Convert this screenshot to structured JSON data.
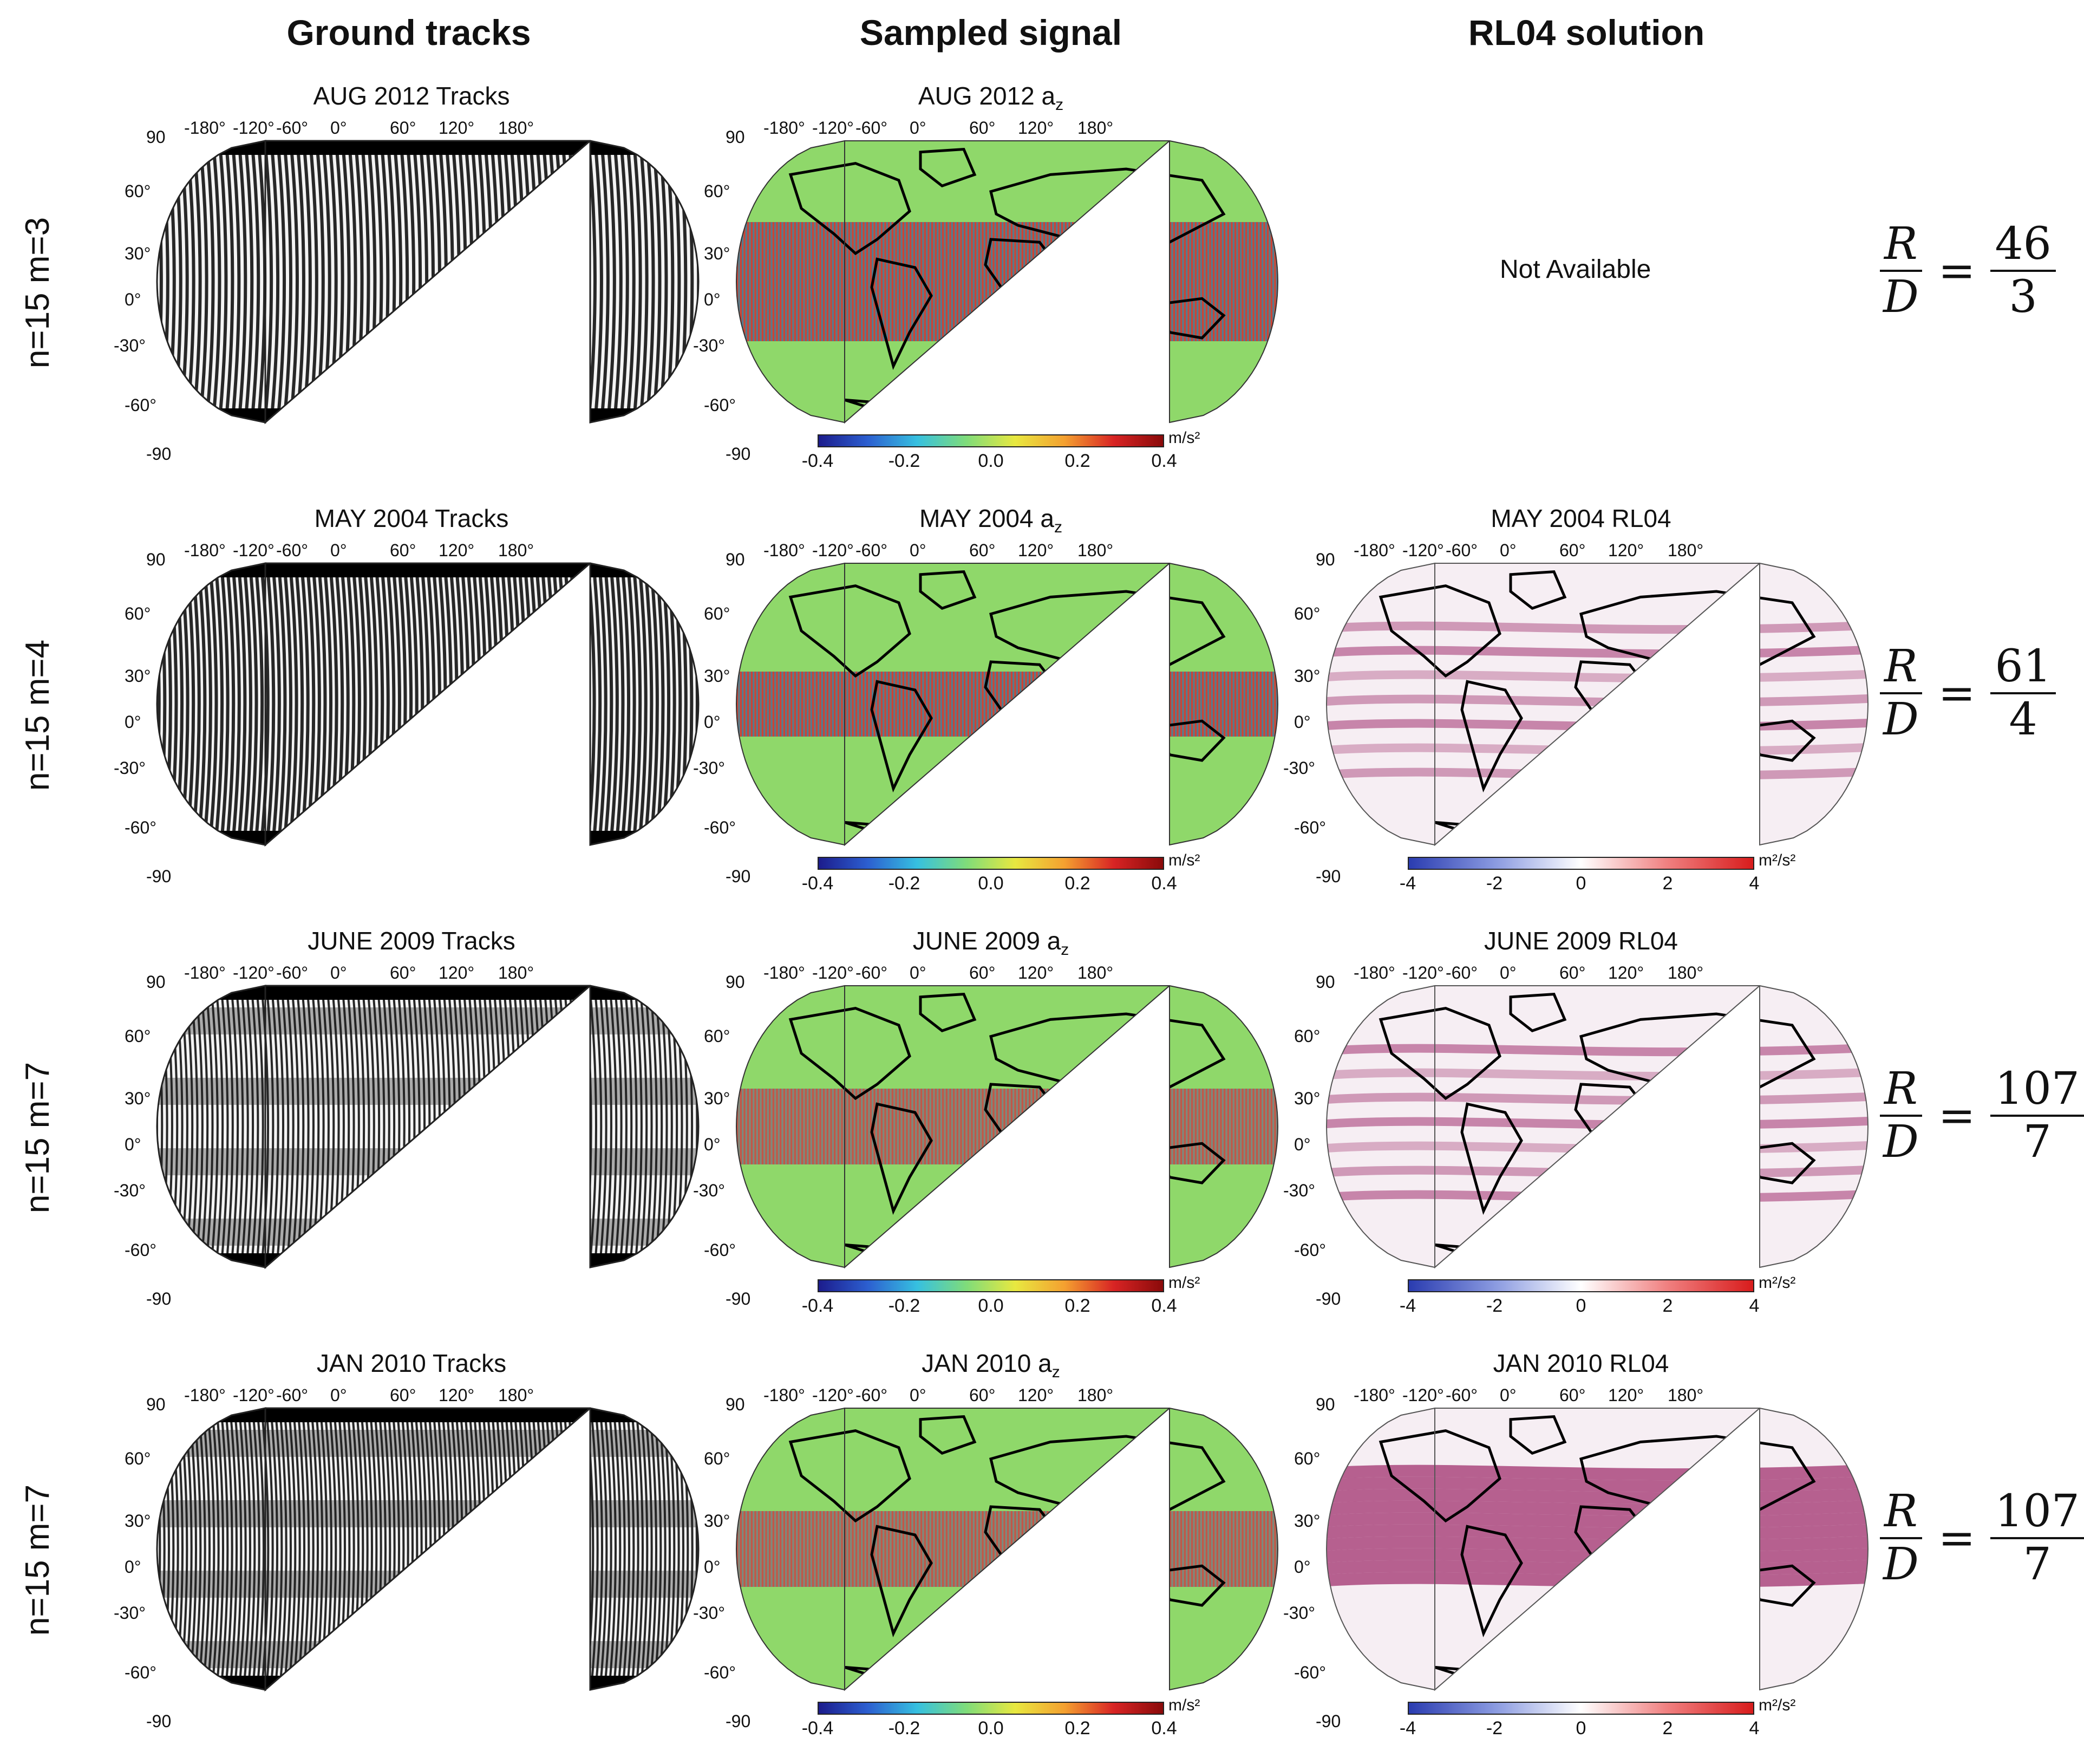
{
  "column_headers": [
    "Ground tracks",
    "Sampled signal",
    "RL04 solution"
  ],
  "lon_labels": [
    "-180°",
    "-120°",
    "-60°",
    "0°",
    "60°",
    "120°",
    "180°"
  ],
  "lat_labels": [
    "90",
    "60°",
    "30°",
    "0°",
    "-30°",
    "-60°",
    "-90"
  ],
  "rows": [
    {
      "label": "n=15  m=3",
      "tracks_title": "AUG 2012 Tracks",
      "signal_title": "AUG 2012 a",
      "signal_sub": "z",
      "rl04_title": "",
      "rl04_available": false,
      "not_available_text": "Not Available",
      "ratio": {
        "lhs_num": "R",
        "lhs_den": "D",
        "eq": "=",
        "num": "46",
        "den": "3"
      }
    },
    {
      "label": "n=15  m=4",
      "tracks_title": "MAY 2004 Tracks",
      "signal_title": "MAY 2004 a",
      "signal_sub": "z",
      "rl04_title": "MAY 2004 RL04",
      "rl04_available": true,
      "ratio": {
        "lhs_num": "R",
        "lhs_den": "D",
        "eq": "=",
        "num": "61",
        "den": "4"
      }
    },
    {
      "label": "n=15  m=7",
      "tracks_title": "JUNE 2009 Tracks",
      "signal_title": "JUNE 2009 a",
      "signal_sub": "z",
      "rl04_title": "JUNE 2009 RL04",
      "rl04_available": true,
      "ratio": {
        "lhs_num": "R",
        "lhs_den": "D",
        "eq": "=",
        "num": "107",
        "den": "7"
      }
    },
    {
      "label": "n=15  m=7",
      "tracks_title": "JAN 2010 Tracks",
      "signal_title": "JAN 2010 a",
      "signal_sub": "z",
      "rl04_title": "JAN 2010 RL04",
      "rl04_available": true,
      "ratio": {
        "lhs_num": "R",
        "lhs_den": "D",
        "eq": "=",
        "num": "107",
        "den": "7"
      }
    }
  ],
  "signal_colorbar": {
    "unit": "m/s²",
    "ticks": [
      "-0.4",
      "-0.2",
      "0.0",
      "0.2",
      "0.4"
    ]
  },
  "rl04_colorbar": {
    "unit": "m²/s²",
    "ticks": [
      "-4",
      "-2",
      "0",
      "2",
      "4"
    ]
  },
  "colors": {
    "signal_background": "#8fd86a",
    "rl04_background": "#f6eef3",
    "rl04_band": "#a0306e",
    "track_line": "#111111"
  }
}
